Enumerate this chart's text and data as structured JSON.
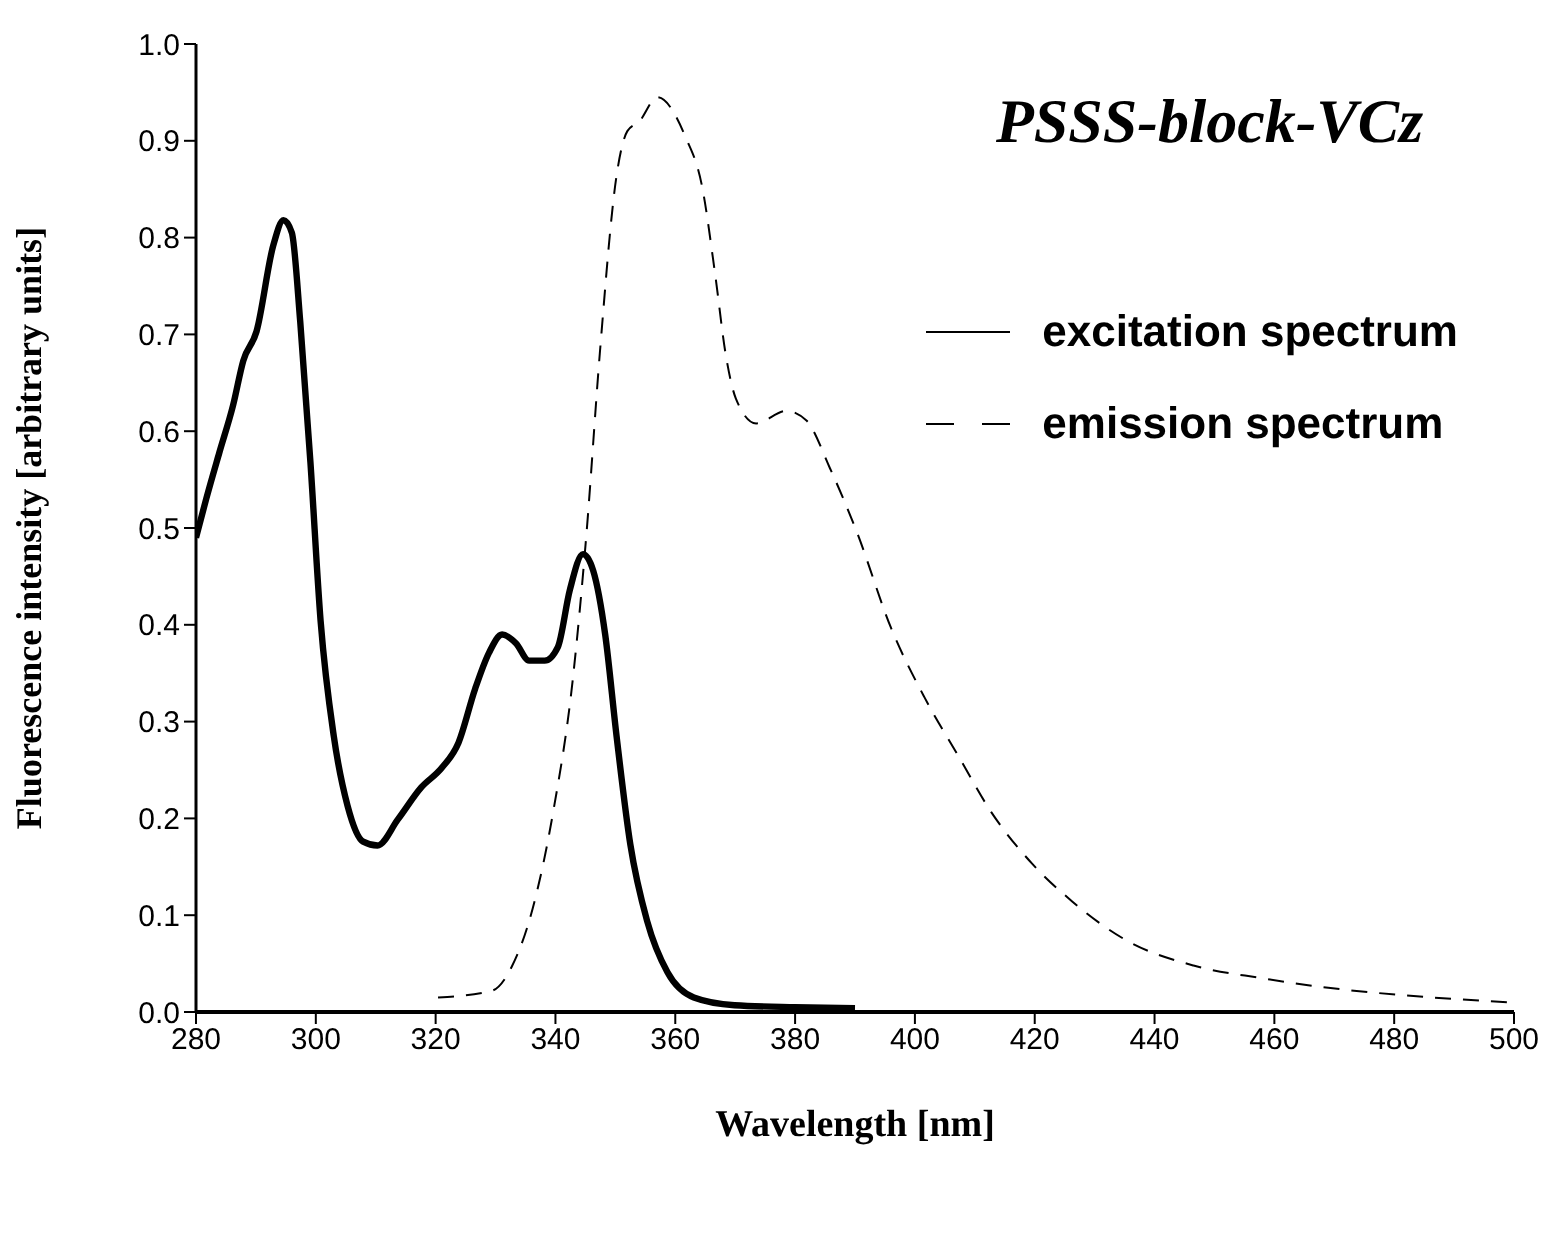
{
  "chart_data": {
    "type": "line",
    "title": "PSSS-block-VCz",
    "xlabel": "Wavelength [nm]",
    "ylabel": "Fluorescence intensity [arbitrary units]",
    "xlim": [
      280,
      500
    ],
    "xticks": [
      280,
      300,
      320,
      340,
      360,
      380,
      400,
      420,
      440,
      460,
      480,
      500
    ],
    "ylim": [
      0,
      1
    ],
    "yticks": [
      {
        "value": 0,
        "label": "0.0"
      },
      {
        "value": 0.1,
        "label": "0.1"
      },
      {
        "value": 0.2,
        "label": "0.2"
      },
      {
        "value": 0.3,
        "label": "0.3"
      },
      {
        "value": 0.4,
        "label": "0.4"
      },
      {
        "value": 0.5,
        "label": "0.5"
      },
      {
        "value": 0.6,
        "label": "0.6"
      },
      {
        "value": 0.7,
        "label": "0.7"
      },
      {
        "value": 0.8,
        "label": "0.8"
      },
      {
        "value": 0.9,
        "label": "0.9"
      },
      {
        "value": 1,
        "label": "1.0"
      }
    ],
    "legend": "top right",
    "marker": "none",
    "series": [
      {
        "name": "excitation spectrum",
        "color": "#000000",
        "line_style": "solid",
        "x": [
          280,
          281.7,
          283.9,
          286.2,
          287.9,
          290.1,
          292.9,
          294.6,
          296,
          297.4,
          299.1,
          300.8,
          303,
          305.3,
          307.9,
          310.3,
          313.7,
          317.6,
          321,
          323.8,
          326.6,
          328.9,
          331.1,
          333.4,
          335.6,
          338.2,
          340.4,
          342.4,
          344.6,
          346.3,
          348.3,
          350.2,
          352.5,
          355.3,
          358.7,
          363.1,
          369.9,
          380,
          390
        ],
        "values": [
          0.49,
          0.53,
          0.578,
          0.627,
          0.673,
          0.703,
          0.792,
          0.818,
          0.805,
          0.713,
          0.568,
          0.404,
          0.285,
          0.213,
          0.176,
          0.172,
          0.199,
          0.232,
          0.252,
          0.278,
          0.334,
          0.371,
          0.39,
          0.381,
          0.363,
          0.363,
          0.377,
          0.436,
          0.473,
          0.456,
          0.39,
          0.285,
          0.173,
          0.094,
          0.041,
          0.015,
          0.007,
          0.005,
          0.004
        ]
      },
      {
        "name": "emission spectrum",
        "color": "#000000",
        "line_style": "dashed",
        "x": [
          320.4,
          329.4,
          332.8,
          336.2,
          339.6,
          342.9,
          345.2,
          347.4,
          350.2,
          352,
          354,
          357,
          361.7,
          364.5,
          366.7,
          368.4,
          370.1,
          373.5,
          378.5,
          381.9,
          385.8,
          390.3,
          396,
          401.6,
          407.2,
          412.8,
          419.6,
          426.3,
          435.3,
          446.5,
          457.8,
          469,
          480.2,
          499.3
        ],
        "values": [
          0.015,
          0.022,
          0.048,
          0.107,
          0.206,
          0.344,
          0.496,
          0.68,
          0.864,
          0.91,
          0.92,
          0.945,
          0.904,
          0.852,
          0.76,
          0.68,
          0.634,
          0.608,
          0.621,
          0.611,
          0.562,
          0.496,
          0.397,
          0.325,
          0.265,
          0.206,
          0.153,
          0.114,
          0.074,
          0.048,
          0.035,
          0.025,
          0.018,
          0.01
        ]
      }
    ]
  }
}
